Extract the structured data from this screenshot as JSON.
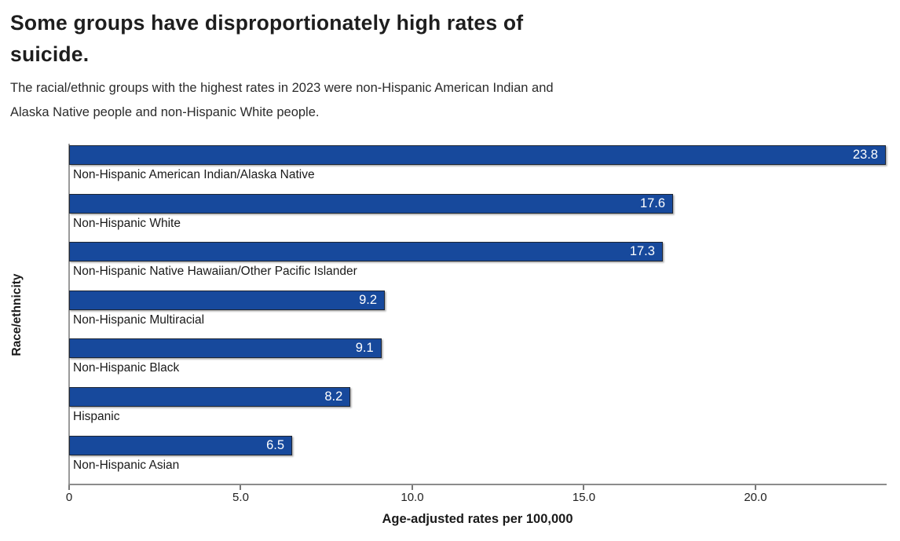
{
  "header": {
    "title": "Some groups have disproportionately high rates of suicide.",
    "subtitle": "The racial/ethnic groups with the highest rates in 2023 were non-Hispanic American Indian and Alaska Native people and non-Hispanic White people."
  },
  "chart_data": {
    "type": "bar",
    "orientation": "horizontal",
    "title": "Some groups have disproportionately high rates of suicide.",
    "subtitle": "The racial/ethnic groups with the highest rates in 2023 were non-Hispanic American Indian and Alaska Native people and non-Hispanic White people.",
    "categories": [
      "Non-Hispanic American Indian/Alaska Native",
      "Non-Hispanic White",
      "Non-Hispanic Native Hawaiian/Other Pacific Islander",
      "Non-Hispanic Multiracial",
      "Non-Hispanic Black",
      "Hispanic",
      "Non-Hispanic Asian"
    ],
    "values": [
      23.8,
      17.6,
      17.3,
      9.2,
      9.1,
      8.2,
      6.5
    ],
    "value_labels": [
      "23.8",
      "17.6",
      "17.3",
      "9.2",
      "9.1",
      "8.2",
      "6.5"
    ],
    "xlabel": "Age-adjusted rates per 100,000",
    "ylabel": "Race/ethnicity",
    "xlim": [
      0,
      23.8
    ],
    "x_tick_values": [
      0,
      5,
      10,
      15,
      20
    ],
    "x_tick_labels": [
      "0",
      "5.0",
      "10.0",
      "15.0",
      "20.0"
    ],
    "grid": false,
    "legend": "none",
    "year": "2023",
    "colors": {
      "bar_fill": "#17499C",
      "bar_border": "#1E2633",
      "value_label": "#FFFFFF",
      "axis_line": "#8C8C8C",
      "text": "#1A1A1A"
    }
  }
}
